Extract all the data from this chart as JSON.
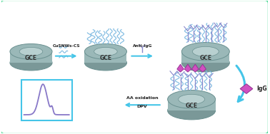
{
  "bg_color": "#ffffff",
  "border_color": "#3dd68c",
  "border_linewidth": 3.0,
  "gce_face": "#9ab8b8",
  "gce_edge": "#6a9090",
  "gce_inner": "#b8d0d0",
  "gce_shadow": "#7a9898",
  "arrow_color": "#45c5e8",
  "nw_color": "#7ab8e0",
  "ab_color": "#8888cc",
  "igG_face": "#d050c0",
  "igG_edge": "#903090",
  "dpv_curve": "#8878c8",
  "dpv_box": "#45c5e8",
  "text_cusnws": "CuSNWs-CS",
  "text_anti": "Anti-IgG",
  "text_aa": "AA oxidation",
  "text_dpv": "DPV",
  "text_igG": "IgG",
  "text_gce": "GCE"
}
